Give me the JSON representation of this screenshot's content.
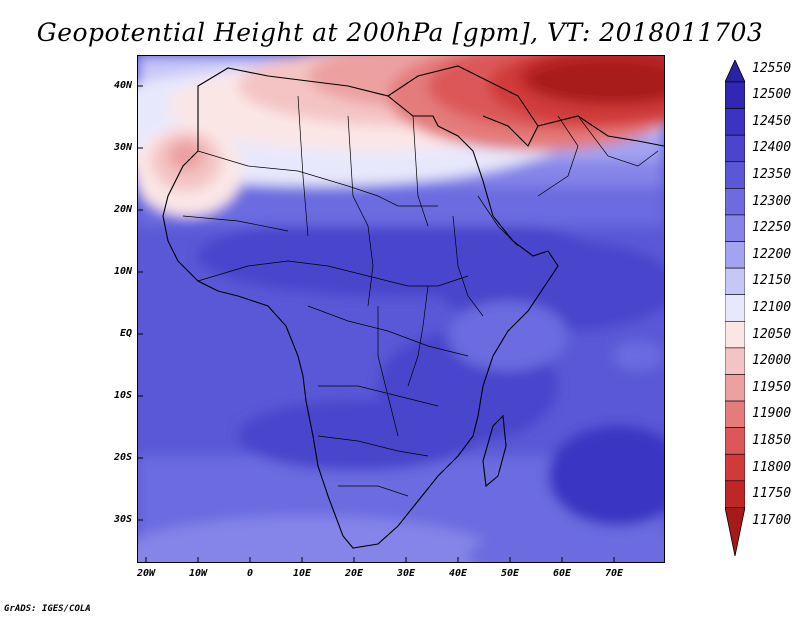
{
  "title": "Geopotential Height at 200hPa [gpm], VT: 2018011703",
  "credit": "GrADS: IGES/COLA",
  "map": {
    "lat_labels": [
      "40N",
      "30N",
      "20N",
      "10N",
      "EQ",
      "10S",
      "20S",
      "30S"
    ],
    "lon_labels": [
      "20W",
      "10W",
      "0",
      "10E",
      "20E",
      "30E",
      "40E",
      "50E",
      "60E",
      "70E"
    ],
    "lon_range": [
      -22,
      80
    ],
    "lat_range": [
      -37,
      45
    ]
  },
  "colorbar": {
    "levels": [
      "12550",
      "12500",
      "12450",
      "12400",
      "12350",
      "12300",
      "12250",
      "12200",
      "12150",
      "12100",
      "12050",
      "12000",
      "11950",
      "11900",
      "11850",
      "11800",
      "11750",
      "11700"
    ],
    "colors": [
      "#2a22a6",
      "#3226b4",
      "#3b34c3",
      "#4a45cc",
      "#5a58d6",
      "#6c6ce0",
      "#8584e8",
      "#a3a3f0",
      "#c6c6f7",
      "#e8e8fc",
      "#fbe6e6",
      "#f4c4c4",
      "#eca0a0",
      "#e47c7c",
      "#dc5858",
      "#d03a3a",
      "#bf2626",
      "#a81a1a"
    ]
  }
}
